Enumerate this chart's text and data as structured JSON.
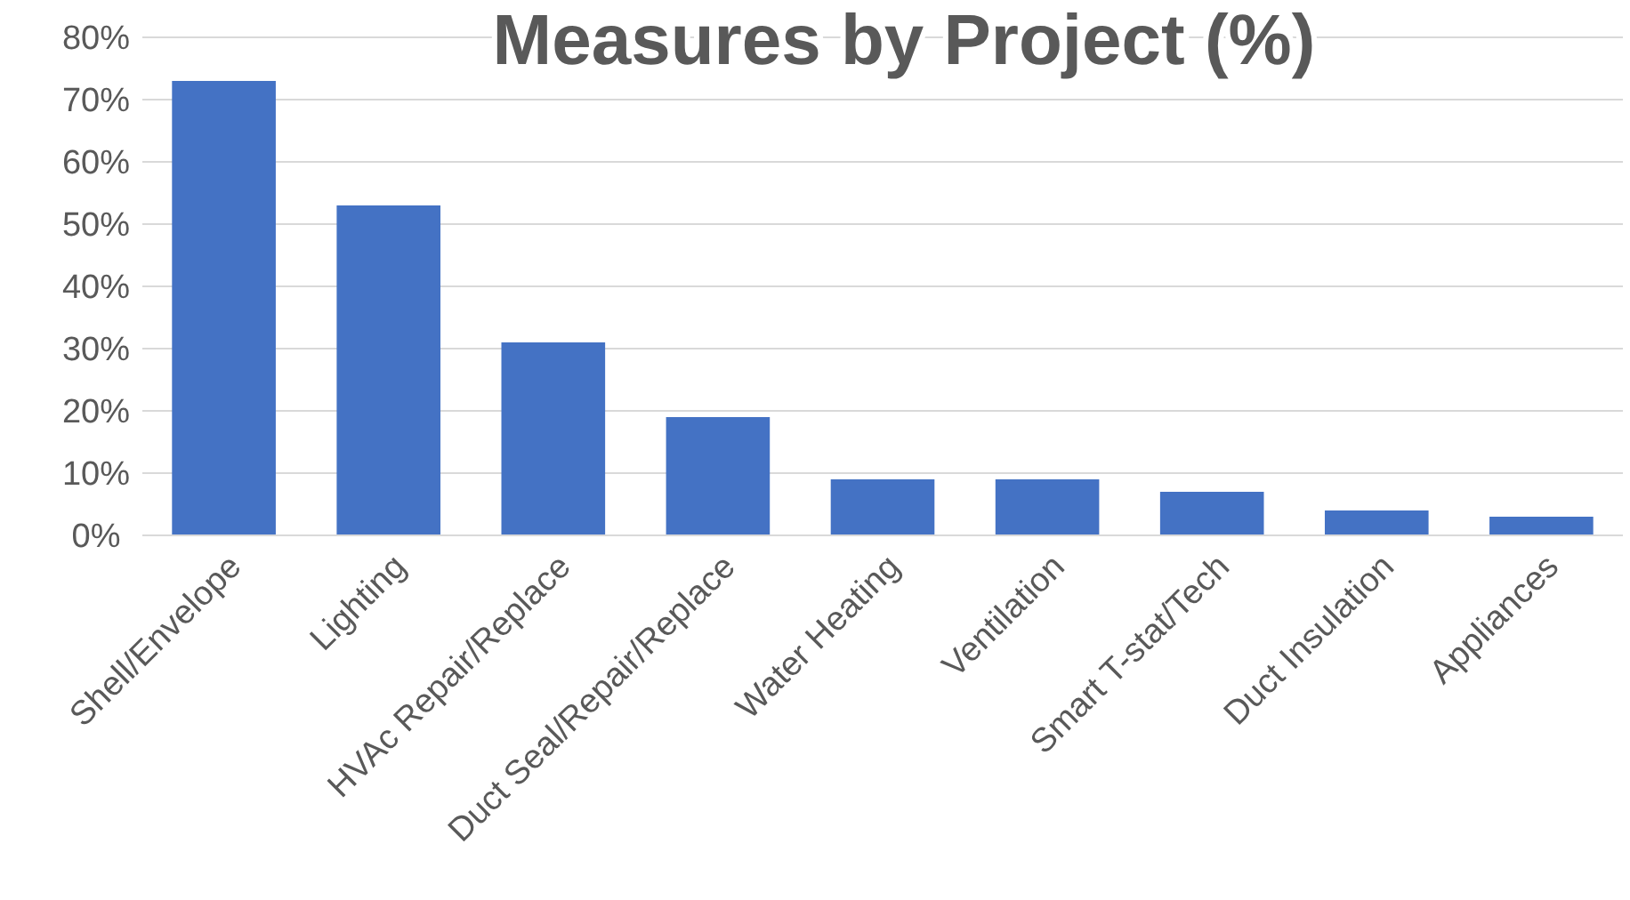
{
  "chart_data": {
    "type": "bar",
    "title": "Measures by Project (%)",
    "categories": [
      "Shell/Envelope",
      "Lighting",
      "HVAc Repair/Replace",
      "Duct Seal/Repair/Replace",
      "Water Heating",
      "Ventilation",
      "Smart T-stat/Tech",
      "Duct Insulation",
      "Appliances"
    ],
    "values": [
      73,
      53,
      31,
      19,
      9,
      9,
      7,
      4,
      3
    ],
    "color": "#4472c4",
    "ylim": [
      0,
      80
    ],
    "yticks": [
      {
        "value": 0,
        "label": "0%"
      },
      {
        "value": 10,
        "label": "10%"
      },
      {
        "value": 20,
        "label": "20%"
      },
      {
        "value": 30,
        "label": "30%"
      },
      {
        "value": 40,
        "label": "40%"
      },
      {
        "value": 50,
        "label": "50%"
      },
      {
        "value": 60,
        "label": "60%"
      },
      {
        "value": 70,
        "label": "70%"
      },
      {
        "value": 80,
        "label": "80%"
      }
    ],
    "grid": "y"
  }
}
